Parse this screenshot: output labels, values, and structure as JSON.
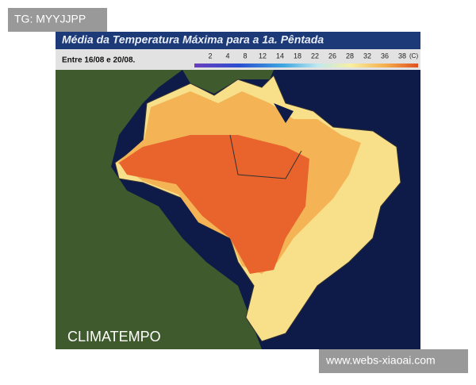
{
  "watermark_top": "TG: MYYJJPP",
  "map": {
    "title": "Média da Temperatura Máxima para a 1a. Pêntada",
    "period": "Entre 16/08 e 20/08.",
    "legend": {
      "labels": [
        2,
        4,
        8,
        12,
        14,
        18,
        22,
        26,
        28,
        32,
        36,
        38
      ],
      "unit": "(C)"
    },
    "brand": "CLIMATEMPO"
  },
  "watermark_bottom": "www.webs-xiaoai.com"
}
